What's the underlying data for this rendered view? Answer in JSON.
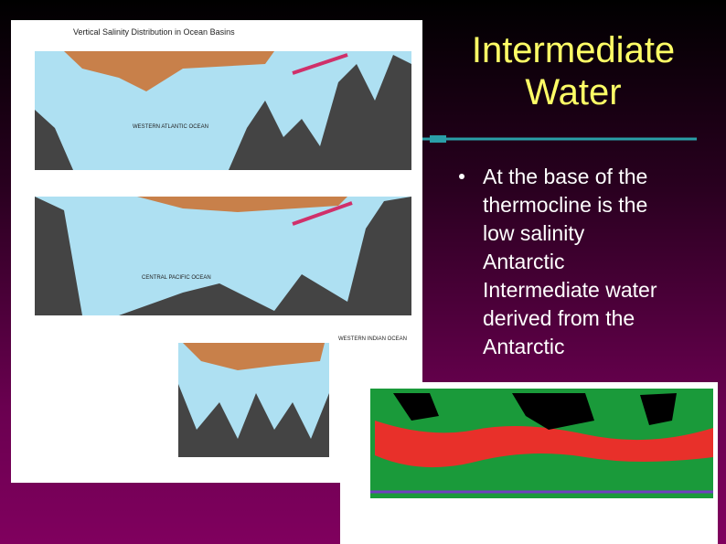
{
  "slide": {
    "title": [
      "Intermediate",
      "Water"
    ],
    "bullet": [
      "At the base of  the",
      "thermocline is the",
      "low salinity",
      "Antarctic",
      "Intermediate water",
      "derived from the",
      "Antarctic"
    ],
    "figure": {
      "caption": "Vertical Salinity Distribution in Ocean Basins",
      "panels": [
        "WESTERN ATLANTIC OCEAN",
        "CENTRAL PACIFIC OCEAN",
        "WESTERN INDIAN OCEAN"
      ]
    }
  }
}
